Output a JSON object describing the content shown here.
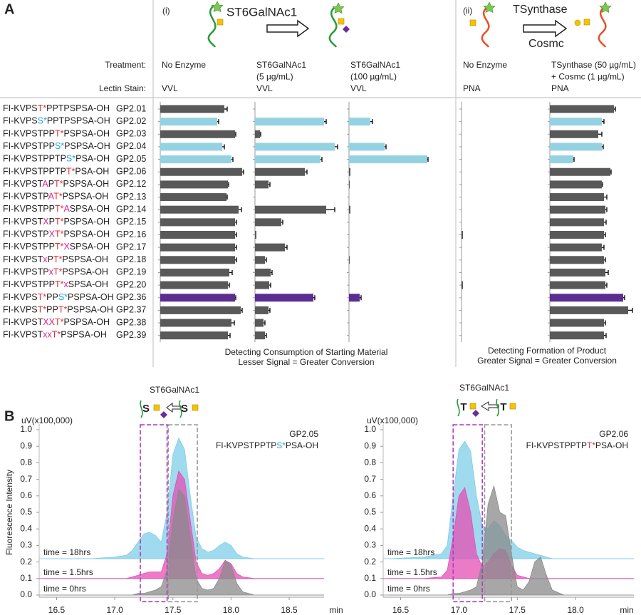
{
  "panel_a": {
    "label": "A",
    "sections": [
      {
        "label": "(i)",
        "enzyme": "ST6GalNAc1"
      },
      {
        "label": "(ii)",
        "enzyme": "TSynthase",
        "cofactor": "Cosmc"
      }
    ],
    "row_headers": [
      "Treatment:",
      "Lectin Stain:"
    ],
    "footers": [
      [
        "Detecting Consumption of Starting Material",
        "Lesser Signal = Greater Conversion"
      ],
      [
        "Detecting Formation of Product",
        "Greater Signal = Greater Conversion"
      ]
    ],
    "bar_colors": [
      "#595959",
      "#94d2e2",
      "#595959",
      "#94d2e2",
      "#94d2e2",
      "#595959",
      "#595959",
      "#595959",
      "#595959",
      "#595959",
      "#595959",
      "#595959",
      "#595959",
      "#595959",
      "#595959",
      "#5c2d91",
      "#595959",
      "#595959",
      "#595959"
    ],
    "peptides": [
      {
        "id": "GP2.01",
        "segments": [
          [
            "FI-KVPS",
            "#222"
          ],
          [
            "T*",
            "#e0303a"
          ],
          [
            "PPTPSPSA-OH",
            "#222"
          ]
        ]
      },
      {
        "id": "GP2.02",
        "segments": [
          [
            "FI-KVPS",
            "#222"
          ],
          [
            "S*",
            "#2aa0d8"
          ],
          [
            "PPTPSPSA-OH",
            "#222"
          ]
        ]
      },
      {
        "id": "GP2.03",
        "segments": [
          [
            "FI-KVPSTPP",
            "#222"
          ],
          [
            "T*",
            "#e0303a"
          ],
          [
            "PSPSA-OH",
            "#222"
          ]
        ]
      },
      {
        "id": "GP2.04",
        "segments": [
          [
            "FI-KVPSTPP",
            "#222"
          ],
          [
            "S*",
            "#2aa0d8"
          ],
          [
            "PSPSA-OH",
            "#222"
          ]
        ]
      },
      {
        "id": "GP2.05",
        "segments": [
          [
            "FI-KVPSTPPTP",
            "#222"
          ],
          [
            "S*",
            "#2aa0d8"
          ],
          [
            "PSA-OH",
            "#222"
          ]
        ]
      },
      {
        "id": "GP2.06",
        "segments": [
          [
            "FI-KVPSTPPTP",
            "#222"
          ],
          [
            "T*",
            "#e0303a"
          ],
          [
            "PSA-OH",
            "#222"
          ]
        ]
      },
      {
        "id": "GP2.12",
        "segments": [
          [
            "FI-KVPST",
            "#222"
          ],
          [
            "A",
            "#e0208c"
          ],
          [
            "P",
            "#222"
          ],
          [
            "T*",
            "#e0303a"
          ],
          [
            "PSPSA-OH",
            "#222"
          ]
        ]
      },
      {
        "id": "GP2.13",
        "segments": [
          [
            "FI-KVPSTP",
            "#222"
          ],
          [
            "A",
            "#e0208c"
          ],
          [
            "T*",
            "#e0303a"
          ],
          [
            "PSPSA-OH",
            "#222"
          ]
        ]
      },
      {
        "id": "GP2.14",
        "segments": [
          [
            "FI-KVPSTPP",
            "#222"
          ],
          [
            "T*",
            "#e0303a"
          ],
          [
            "A",
            "#e0208c"
          ],
          [
            "SPSA-OH",
            "#222"
          ]
        ]
      },
      {
        "id": "GP2.15",
        "segments": [
          [
            "FI-KVPST",
            "#222"
          ],
          [
            "X",
            "#e0208c"
          ],
          [
            "P",
            "#222"
          ],
          [
            "T*",
            "#e0303a"
          ],
          [
            "PSPSA-OH",
            "#222"
          ]
        ]
      },
      {
        "id": "GP2.16",
        "segments": [
          [
            "FI-KVPSTP",
            "#222"
          ],
          [
            "X",
            "#e0208c"
          ],
          [
            "T*",
            "#e0303a"
          ],
          [
            "PSPSA-OH",
            "#222"
          ]
        ]
      },
      {
        "id": "GP2.17",
        "segments": [
          [
            "FI-KVPSTPP",
            "#222"
          ],
          [
            "T*",
            "#e0303a"
          ],
          [
            "X",
            "#e0208c"
          ],
          [
            "SPSA-OH",
            "#222"
          ]
        ]
      },
      {
        "id": "GP2.18",
        "segments": [
          [
            "FI-KVPST",
            "#222"
          ],
          [
            "x",
            "#e0208c"
          ],
          [
            "P",
            "#222"
          ],
          [
            "T*",
            "#e0303a"
          ],
          [
            "PSPSA-OH",
            "#222"
          ]
        ]
      },
      {
        "id": "GP2.19",
        "segments": [
          [
            "FI-KVPSTP",
            "#222"
          ],
          [
            "x",
            "#e0208c"
          ],
          [
            "T*",
            "#e0303a"
          ],
          [
            "PSPSA-OH",
            "#222"
          ]
        ]
      },
      {
        "id": "GP2.20",
        "segments": [
          [
            "FI-KVPSTPP",
            "#222"
          ],
          [
            "T*",
            "#e0303a"
          ],
          [
            "x",
            "#e0208c"
          ],
          [
            "SPSA-OH",
            "#222"
          ]
        ]
      },
      {
        "id": "GP2.36",
        "segments": [
          [
            "FI-KVPS",
            "#222"
          ],
          [
            "T*",
            "#e0303a"
          ],
          [
            "PP",
            "#222"
          ],
          [
            "S*",
            "#2aa0d8"
          ],
          [
            "PSPSA-OH",
            "#222"
          ]
        ]
      },
      {
        "id": "GP2.37",
        "segments": [
          [
            "FI-KVPS",
            "#222"
          ],
          [
            "T*",
            "#e0303a"
          ],
          [
            "PP",
            "#222"
          ],
          [
            "T*",
            "#e0303a"
          ],
          [
            "PSPSA-OH",
            "#222"
          ]
        ]
      },
      {
        "id": "GP2.38",
        "segments": [
          [
            "FI-KVPST",
            "#222"
          ],
          [
            "XX",
            "#e0208c"
          ],
          [
            "T*",
            "#e0303a"
          ],
          [
            "PSPSA-OH",
            "#222"
          ]
        ]
      },
      {
        "id": "GP2.39",
        "segments": [
          [
            "FI-KVPST",
            "#222"
          ],
          [
            "xx",
            "#e0208c"
          ],
          [
            "T*",
            "#e0303a"
          ],
          [
            "PSPSA-OH",
            "#222"
          ]
        ]
      }
    ]
  },
  "panel_b": {
    "label": "B"
  },
  "chart_data": [
    {
      "type": "bar",
      "treatment": [
        "No Enzyme"
      ],
      "lectin_stain": "VVL",
      "xlim": [
        0,
        120
      ],
      "values": [
        90,
        80,
        105,
        87,
        100,
        115,
        95,
        93,
        110,
        105,
        105,
        105,
        105,
        97,
        95,
        105,
        113,
        100,
        95
      ],
      "errors": [
        4,
        2,
        1,
        3,
        2,
        2,
        1,
        1,
        4,
        2,
        2,
        2,
        2,
        4,
        2,
        1,
        2,
        4,
        3
      ]
    },
    {
      "type": "bar",
      "treatment": [
        "ST6GalNAc1",
        "(5 µg/mL)"
      ],
      "lectin_stain": "VVL",
      "xlim": [
        0,
        120
      ],
      "values": [
        0,
        97,
        7,
        112,
        92,
        70,
        19,
        0,
        100,
        37,
        2,
        42,
        14,
        22,
        20,
        82,
        19,
        12,
        14
      ],
      "errors": [
        0,
        3,
        1,
        4,
        2,
        3,
        2,
        0,
        12,
        2,
        0,
        3,
        2,
        2,
        2,
        2,
        2,
        2,
        2
      ]
    },
    {
      "type": "bar",
      "treatment": [
        "ST6GalNAc1",
        "(100 µg/mL)"
      ],
      "lectin_stain": "VVL",
      "xlim": [
        0,
        120
      ],
      "values": [
        0,
        30,
        0,
        50,
        110,
        2,
        1,
        0,
        2,
        0,
        0,
        0,
        1,
        0,
        0,
        15,
        0,
        0,
        0
      ],
      "errors": [
        0,
        3,
        0,
        2,
        1,
        0,
        0,
        0,
        0,
        0,
        0,
        0,
        0,
        0,
        0,
        2,
        0,
        0,
        0
      ]
    },
    {
      "type": "bar",
      "treatment": [
        "No Enzyme"
      ],
      "lectin_stain": "PNA",
      "xlim": [
        0,
        120
      ],
      "values": [
        0,
        0,
        0,
        0,
        0,
        0,
        0,
        0,
        0,
        0,
        2,
        0,
        0,
        0,
        2,
        0,
        0,
        0,
        0
      ],
      "errors": [
        0,
        0,
        0,
        0,
        0,
        0,
        0,
        0,
        0,
        0,
        0,
        0,
        0,
        0,
        0,
        0,
        0,
        0,
        0
      ]
    },
    {
      "type": "bar",
      "treatment": [
        "TSynthase (50 µg/mL)",
        "+ Cosmc (1 µg/mL)"
      ],
      "lectin_stain": "PNA",
      "xlim": [
        0,
        120
      ],
      "values": [
        90,
        73,
        68,
        73,
        33,
        85,
        73,
        76,
        78,
        76,
        76,
        73,
        76,
        78,
        78,
        103,
        110,
        76,
        76
      ],
      "errors": [
        2,
        3,
        5,
        2,
        1,
        1,
        1,
        4,
        2,
        3,
        2,
        3,
        2,
        4,
        2,
        2,
        6,
        2,
        3
      ]
    },
    {
      "type": "area",
      "enzyme": "ST6GalNAc1",
      "icon_residue": "S",
      "unit_label": "uV(x100,000)",
      "y_label": "Fluorescence Intensity",
      "x_label": "min",
      "annotation": {
        "id": "GP2.05",
        "segments": [
          [
            "FI-KVPSTPPTP",
            "#222"
          ],
          [
            "S*",
            "#2aa0d8"
          ],
          [
            "PSA-OH",
            "#222"
          ]
        ]
      },
      "xlim": [
        16.35,
        18.8
      ],
      "xticks": [
        16.5,
        {
          "value": 17,
          "label": "17.0"
        },
        17.5,
        {
          "value": 18,
          "label": "18.0"
        },
        18.5
      ],
      "ylim": [
        0,
        1
      ],
      "yticks": [
        {
          "value": 0,
          "label": "0.0"
        },
        0.1,
        0.2,
        0.3,
        0.4,
        0.5,
        0.6,
        0.7,
        0.8,
        0.9,
        {
          "value": 1,
          "label": "1.0"
        }
      ],
      "boxes": [
        {
          "range": [
            17.22,
            17.45
          ],
          "color": "#b03cc0"
        },
        {
          "range": [
            17.46,
            17.71
          ],
          "color": "#999999"
        }
      ],
      "x": [
        16.4,
        16.8,
        17.0,
        17.1,
        17.15,
        17.2,
        17.25,
        17.3,
        17.35,
        17.4,
        17.45,
        17.5,
        17.55,
        17.6,
        17.65,
        17.7,
        17.75,
        17.8,
        17.85,
        17.9,
        17.95,
        18.0,
        18.05,
        18.1,
        18.2,
        18.5,
        18.8
      ],
      "series": [
        {
          "name": "time = 18hrs",
          "color": "#7fcdea",
          "label_color": "#29a8d8",
          "baseline": 0.22,
          "values": [
            0.22,
            0.22,
            0.23,
            0.24,
            0.27,
            0.32,
            0.37,
            0.38,
            0.36,
            0.32,
            0.5,
            0.85,
            0.95,
            0.88,
            0.6,
            0.35,
            0.28,
            0.26,
            0.27,
            0.3,
            0.32,
            0.3,
            0.25,
            0.23,
            0.22,
            0.22,
            0.22
          ]
        },
        {
          "name": "time = 1.5hrs",
          "color": "#e44fb4",
          "label_color": "#d62c9c",
          "baseline": 0.1,
          "values": [
            0.1,
            0.1,
            0.1,
            0.1,
            0.11,
            0.12,
            0.13,
            0.14,
            0.14,
            0.14,
            0.25,
            0.6,
            0.75,
            0.7,
            0.45,
            0.2,
            0.13,
            0.12,
            0.13,
            0.16,
            0.21,
            0.19,
            0.13,
            0.11,
            0.1,
            0.1,
            0.1
          ]
        },
        {
          "name": "time = 0hrs",
          "color": "#8a8a8a",
          "label_color": "#444444",
          "baseline": 0,
          "values": [
            0,
            0,
            0,
            0,
            0,
            0.01,
            0.01,
            0.02,
            0.03,
            0.05,
            0.15,
            0.45,
            0.64,
            0.6,
            0.35,
            0.1,
            0.04,
            0.03,
            0.04,
            0.1,
            0.21,
            0.18,
            0.07,
            0.02,
            0,
            0,
            0
          ]
        }
      ]
    },
    {
      "type": "area",
      "enzyme": "ST6GalNAc1",
      "icon_residue": "T",
      "unit_label": "uV(x100,000)",
      "x_label": "min",
      "annotation": {
        "id": "GP2.06",
        "segments": [
          [
            "FI-KVPSTPPTP",
            "#222"
          ],
          [
            "T*",
            "#e0303a"
          ],
          [
            "PSA-OH",
            "#222"
          ]
        ]
      },
      "xlim": [
        16.35,
        18.5
      ],
      "xticks": [
        16.5,
        {
          "value": 17,
          "label": "17.0"
        },
        17.5,
        {
          "value": 18,
          "label": "18.0"
        }
      ],
      "ylim": [
        0,
        1
      ],
      "yticks": [
        {
          "value": 0,
          "label": "0.0"
        },
        0.1,
        0.2,
        0.3,
        0.4,
        0.5,
        0.6,
        0.7,
        0.8,
        0.9,
        {
          "value": 1,
          "label": "1.0"
        }
      ],
      "boxes": [
        {
          "range": [
            16.95,
            17.2
          ],
          "color": "#b03cc0"
        },
        {
          "range": [
            17.22,
            17.45
          ],
          "color": "#999999"
        }
      ],
      "x": [
        16.4,
        16.7,
        16.85,
        16.9,
        16.95,
        17.0,
        17.05,
        17.1,
        17.15,
        17.2,
        17.25,
        17.3,
        17.35,
        17.4,
        17.45,
        17.5,
        17.55,
        17.6,
        17.65,
        17.7,
        17.75,
        17.8,
        17.9,
        18.0,
        18.2,
        18.5
      ],
      "series": [
        {
          "name": "time = 18hrs",
          "color": "#7fcdea",
          "label_color": "#29a8d8",
          "baseline": 0.22,
          "values": [
            0.22,
            0.23,
            0.25,
            0.3,
            0.6,
            0.88,
            0.93,
            0.87,
            0.6,
            0.42,
            0.4,
            0.45,
            0.42,
            0.36,
            0.33,
            0.29,
            0.27,
            0.26,
            0.25,
            0.24,
            0.23,
            0.22,
            0.22,
            0.22,
            0.22,
            0.22
          ]
        },
        {
          "name": "time = 1.5hrs",
          "color": "#e44fb4",
          "label_color": "#d62c9c",
          "baseline": 0.1,
          "values": [
            0.1,
            0.1,
            0.11,
            0.15,
            0.35,
            0.6,
            0.65,
            0.5,
            0.25,
            0.17,
            0.2,
            0.25,
            0.28,
            0.27,
            0.18,
            0.12,
            0.11,
            0.1,
            0.1,
            0.1,
            0.1,
            0.1,
            0.1,
            0.1,
            0.1,
            0.1
          ]
        },
        {
          "name": "time = 0hrs",
          "color": "#8a8a8a",
          "label_color": "#444444",
          "baseline": 0,
          "values": [
            0,
            0,
            0,
            0,
            0.01,
            0.01,
            0.02,
            0.03,
            0.05,
            0.2,
            0.55,
            0.66,
            0.5,
            0.48,
            0.25,
            0.05,
            0.03,
            0.08,
            0.2,
            0.23,
            0.12,
            0.03,
            0,
            0,
            0,
            0
          ]
        }
      ]
    }
  ]
}
